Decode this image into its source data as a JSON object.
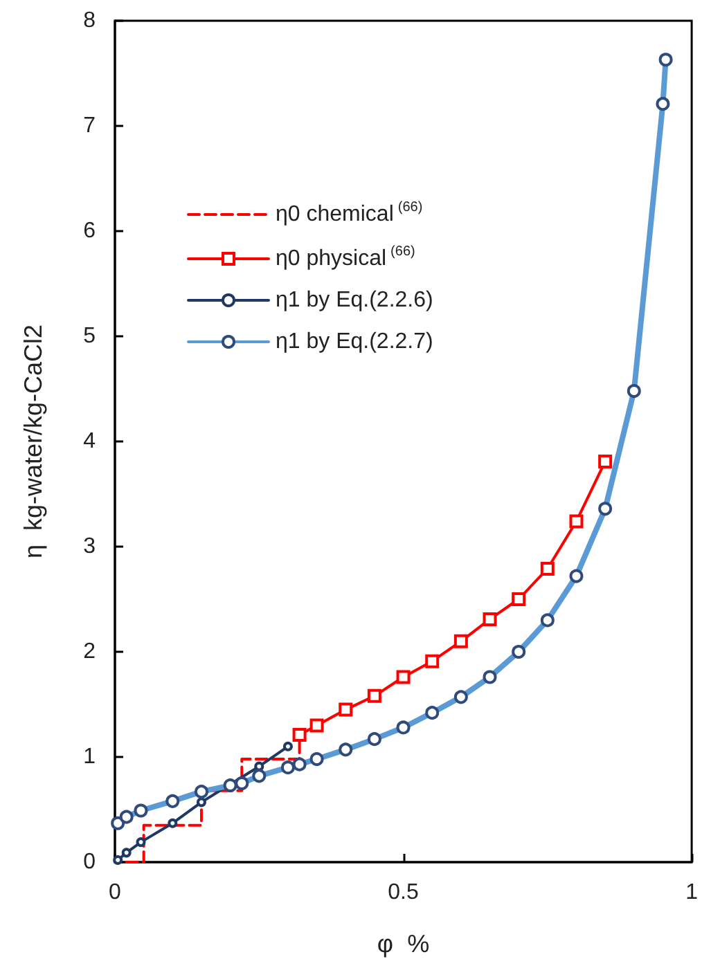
{
  "chart_data": {
    "type": "line",
    "xlabel": "φ  %",
    "ylabel": "η  kg-water/kg-CaCl2",
    "xlim": [
      0,
      1
    ],
    "xticks": [
      0,
      0.5,
      1
    ],
    "ylim": [
      0,
      8
    ],
    "yticks": [
      0,
      1,
      2,
      3,
      4,
      5,
      6,
      7,
      8
    ],
    "grid": false,
    "legend": "top left",
    "series": [
      {
        "name": "η0 chemical$^{(66)}$",
        "type": "step",
        "color": "#ff0000",
        "marker": "none",
        "line_style": "dashed",
        "x": [
          0.02,
          0.05,
          0.15,
          0.22,
          0.32
        ],
        "values": [
          0,
          0.35,
          0.68,
          0.98,
          1.21
        ]
      },
      {
        "name": "η0 physical$^{(66)}$",
        "color": "#ff0000",
        "marker": "square",
        "line_style": "solid",
        "x": [
          0.32,
          0.35,
          0.4,
          0.45,
          0.5,
          0.55,
          0.6,
          0.65,
          0.7,
          0.75,
          0.8,
          0.85
        ],
        "values": [
          1.21,
          1.3,
          1.45,
          1.58,
          1.76,
          1.91,
          2.1,
          2.31,
          2.5,
          2.79,
          3.24,
          3.81
        ]
      },
      {
        "name": "η1 by Eq.(2.2.6)",
        "color": "#203864",
        "marker": "circle",
        "line_style": "solid",
        "x": [
          0.005,
          0.02,
          0.045,
          0.1,
          0.15,
          0.2,
          0.25,
          0.3
        ],
        "values": [
          0.02,
          0.09,
          0.19,
          0.37,
          0.57,
          0.74,
          0.91,
          1.1
        ]
      },
      {
        "name": "η1 by Eq.(2.2.7)",
        "color": "#5b9bd5",
        "marker": "circle",
        "line_style": "solid",
        "x": [
          0.005,
          0.02,
          0.045,
          0.1,
          0.15,
          0.2,
          0.22,
          0.25,
          0.3,
          0.32,
          0.35,
          0.4,
          0.45,
          0.5,
          0.55,
          0.6,
          0.65,
          0.7,
          0.75,
          0.8,
          0.85,
          0.9,
          0.95,
          0.955
        ],
        "values": [
          0.37,
          0.43,
          0.49,
          0.58,
          0.67,
          0.73,
          0.75,
          0.82,
          0.9,
          0.93,
          0.98,
          1.07,
          1.17,
          1.28,
          1.42,
          1.57,
          1.76,
          2.0,
          2.3,
          2.72,
          3.36,
          4.48,
          7.21,
          7.63
        ]
      }
    ]
  }
}
